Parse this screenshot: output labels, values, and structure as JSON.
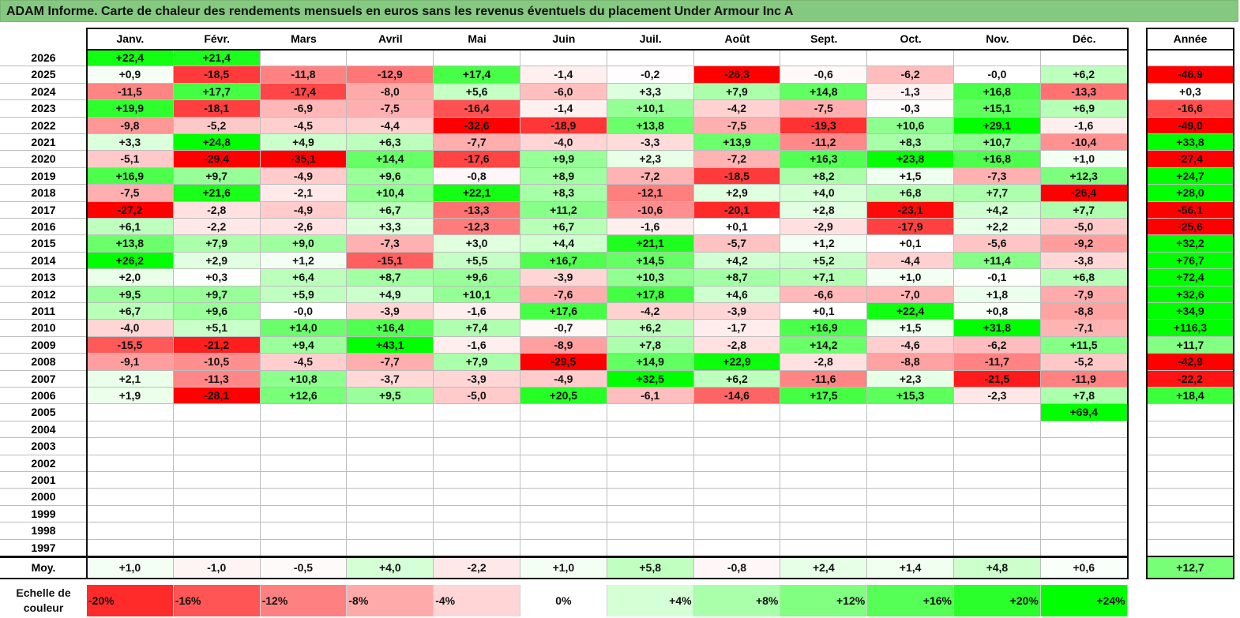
{
  "title": "ADAM Informe. Carte de chaleur des rendements mensuels en euros sans les revenus éventuels du placement Under Armour Inc A",
  "chart_data": {
    "type": "heatmap",
    "title": "ADAM Informe. Carte de chaleur des rendements mensuels en euros sans les revenus éventuels du placement Under Armour Inc A",
    "columns": [
      "Janv.",
      "Févr.",
      "Mars",
      "Avril",
      "Mai",
      "Juin",
      "Juil.",
      "Août",
      "Sept.",
      "Oct.",
      "Nov.",
      "Déc."
    ],
    "year_header": "Année",
    "rows": [
      {
        "year": "2026",
        "months": [
          "+22,4",
          "+21,4",
          "",
          "",
          "",
          "",
          "",
          "",
          "",
          "",
          "",
          ""
        ],
        "annual": ""
      },
      {
        "year": "2025",
        "months": [
          "+0,9",
          "-18,5",
          "-11,8",
          "-12,9",
          "+17,4",
          "-1,4",
          "-0,2",
          "-26,3",
          "-0,6",
          "-6,2",
          "-0,0",
          "+6,2"
        ],
        "annual": "-46,9"
      },
      {
        "year": "2024",
        "months": [
          "-11,5",
          "+17,7",
          "-17,4",
          "-8,0",
          "+5,6",
          "-6,0",
          "+3,3",
          "+7,9",
          "+14,8",
          "-1,3",
          "+16,8",
          "-13,3"
        ],
        "annual": "+0,3"
      },
      {
        "year": "2023",
        "months": [
          "+19,9",
          "-18,1",
          "-6,9",
          "-7,5",
          "-16,4",
          "-1,4",
          "+10,1",
          "-4,2",
          "-7,5",
          "-0,3",
          "+15,1",
          "+6,9"
        ],
        "annual": "-16,6"
      },
      {
        "year": "2022",
        "months": [
          "-9,8",
          "-5,2",
          "-4,5",
          "-4,4",
          "-32,6",
          "-18,9",
          "+13,8",
          "-7,5",
          "-19,3",
          "+10,6",
          "+29,1",
          "-1,6"
        ],
        "annual": "-49,0"
      },
      {
        "year": "2021",
        "months": [
          "+3,3",
          "+24,8",
          "+4,9",
          "+6,3",
          "-7,7",
          "-4,0",
          "-3,3",
          "+13,9",
          "-11,2",
          "+8,3",
          "+10,7",
          "-10,4"
        ],
        "annual": "+33,8"
      },
      {
        "year": "2020",
        "months": [
          "-5,1",
          "-29,4",
          "-35,1",
          "+14,4",
          "-17,6",
          "+9,9",
          "+2,3",
          "-7,2",
          "+16,3",
          "+23,8",
          "+16,8",
          "+1,0"
        ],
        "annual": "-27,4"
      },
      {
        "year": "2019",
        "months": [
          "+16,9",
          "+9,7",
          "-4,9",
          "+9,6",
          "-0,8",
          "+8,9",
          "-7,2",
          "-18,5",
          "+8,2",
          "+1,5",
          "-7,3",
          "+12,3"
        ],
        "annual": "+24,7"
      },
      {
        "year": "2018",
        "months": [
          "-7,5",
          "+21,6",
          "-2,1",
          "+10,4",
          "+22,1",
          "+8,3",
          "-12,1",
          "+2,9",
          "+4,0",
          "+6,8",
          "+7,7",
          "-26,4"
        ],
        "annual": "+28,0"
      },
      {
        "year": "2017",
        "months": [
          "-27,2",
          "-2,8",
          "-4,9",
          "+6,7",
          "-13,3",
          "+11,2",
          "-10,6",
          "-20,1",
          "+2,8",
          "-23,1",
          "+4,2",
          "+7,7"
        ],
        "annual": "-56,1"
      },
      {
        "year": "2016",
        "months": [
          "+6,1",
          "-2,2",
          "-2,6",
          "+3,3",
          "-12,3",
          "+6,7",
          "-1,6",
          "+0,1",
          "-2,9",
          "-17,9",
          "+2,2",
          "-5,0"
        ],
        "annual": "-25,6"
      },
      {
        "year": "2015",
        "months": [
          "+13,8",
          "+7,9",
          "+9,0",
          "-7,3",
          "+3,0",
          "+4,4",
          "+21,1",
          "-5,7",
          "+1,2",
          "+0,1",
          "-5,6",
          "-9,2"
        ],
        "annual": "+32,2"
      },
      {
        "year": "2014",
        "months": [
          "+26,2",
          "+2,9",
          "+1,2",
          "-15,1",
          "+5,5",
          "+16,7",
          "+14,5",
          "+4,2",
          "+5,2",
          "-4,4",
          "+11,4",
          "-3,8"
        ],
        "annual": "+76,7"
      },
      {
        "year": "2013",
        "months": [
          "+2,0",
          "+0,3",
          "+6,4",
          "+8,7",
          "+9,6",
          "-3,9",
          "+10,3",
          "+8,7",
          "+7,1",
          "+1,0",
          "-0,1",
          "+6,8"
        ],
        "annual": "+72,4"
      },
      {
        "year": "2012",
        "months": [
          "+9,5",
          "+9,7",
          "+5,9",
          "+4,9",
          "+10,1",
          "-7,6",
          "+17,8",
          "+4,6",
          "-6,6",
          "-7,0",
          "+1,8",
          "-7,9"
        ],
        "annual": "+32,6"
      },
      {
        "year": "2011",
        "months": [
          "+6,7",
          "+9,6",
          "-0,0",
          "-3,9",
          "-1,6",
          "+17,6",
          "-4,2",
          "-3,9",
          "+0,1",
          "+22,4",
          "+0,8",
          "-8,8"
        ],
        "annual": "+34,9"
      },
      {
        "year": "2010",
        "months": [
          "-4,0",
          "+5,1",
          "+14,0",
          "+16,4",
          "+7,4",
          "-0,7",
          "+6,2",
          "-1,7",
          "+16,9",
          "+1,5",
          "+31,8",
          "-7,1"
        ],
        "annual": "+116,3"
      },
      {
        "year": "2009",
        "months": [
          "-15,5",
          "-21,2",
          "+9,4",
          "+43,1",
          "-1,6",
          "-8,9",
          "+7,8",
          "-2,8",
          "+14,2",
          "-4,6",
          "-6,2",
          "+11,5"
        ],
        "annual": "+11,7"
      },
      {
        "year": "2008",
        "months": [
          "-9,1",
          "-10,5",
          "-4,5",
          "-7,7",
          "+7,9",
          "-29,5",
          "+14,9",
          "+22,9",
          "-2,8",
          "-8,8",
          "-11,7",
          "-5,2"
        ],
        "annual": "-42,9"
      },
      {
        "year": "2007",
        "months": [
          "+2,1",
          "-11,3",
          "+10,8",
          "-3,7",
          "-3,9",
          "-4,9",
          "+32,5",
          "+6,2",
          "-11,6",
          "+2,3",
          "-21,5",
          "-11,9"
        ],
        "annual": "-22,2"
      },
      {
        "year": "2006",
        "months": [
          "+1,9",
          "-28,1",
          "+12,6",
          "+9,5",
          "-5,0",
          "+20,5",
          "-6,1",
          "-14,6",
          "+17,5",
          "+15,3",
          "-2,3",
          "+7,8"
        ],
        "annual": "+18,4"
      },
      {
        "year": "2005",
        "months": [
          "",
          "",
          "",
          "",
          "",
          "",
          "",
          "",
          "",
          "",
          "",
          "+69,4"
        ],
        "annual": ""
      },
      {
        "year": "2004",
        "months": [
          "",
          "",
          "",
          "",
          "",
          "",
          "",
          "",
          "",
          "",
          "",
          ""
        ],
        "annual": ""
      },
      {
        "year": "2003",
        "months": [
          "",
          "",
          "",
          "",
          "",
          "",
          "",
          "",
          "",
          "",
          "",
          ""
        ],
        "annual": ""
      },
      {
        "year": "2002",
        "months": [
          "",
          "",
          "",
          "",
          "",
          "",
          "",
          "",
          "",
          "",
          "",
          ""
        ],
        "annual": ""
      },
      {
        "year": "2001",
        "months": [
          "",
          "",
          "",
          "",
          "",
          "",
          "",
          "",
          "",
          "",
          "",
          ""
        ],
        "annual": ""
      },
      {
        "year": "2000",
        "months": [
          "",
          "",
          "",
          "",
          "",
          "",
          "",
          "",
          "",
          "",
          "",
          ""
        ],
        "annual": ""
      },
      {
        "year": "1999",
        "months": [
          "",
          "",
          "",
          "",
          "",
          "",
          "",
          "",
          "",
          "",
          "",
          ""
        ],
        "annual": ""
      },
      {
        "year": "1998",
        "months": [
          "",
          "",
          "",
          "",
          "",
          "",
          "",
          "",
          "",
          "",
          "",
          ""
        ],
        "annual": ""
      },
      {
        "year": "1997",
        "months": [
          "",
          "",
          "",
          "",
          "",
          "",
          "",
          "",
          "",
          "",
          "",
          ""
        ],
        "annual": ""
      }
    ],
    "average": {
      "label": "Moy.",
      "months": [
        "+1,0",
        "-1,0",
        "-0,5",
        "+4,0",
        "-2,2",
        "+1,0",
        "+5,8",
        "-0,8",
        "+2,4",
        "+1,4",
        "+4,8",
        "+0,6"
      ],
      "annual": "+12,7"
    },
    "scale": {
      "label_line1": "Echelle de",
      "label_line2": "couleur",
      "steps": [
        {
          "label": "-20%",
          "value": -20
        },
        {
          "label": "-16%",
          "value": -16
        },
        {
          "label": "-12%",
          "value": -12
        },
        {
          "label": "-8%",
          "value": -8
        },
        {
          "label": "-4%",
          "value": -4
        },
        {
          "label": "0%",
          "value": 0
        },
        {
          "label": "+4%",
          "value": 4
        },
        {
          "label": "+8%",
          "value": 8
        },
        {
          "label": "+12%",
          "value": 12
        },
        {
          "label": "+16%",
          "value": 16
        },
        {
          "label": "+20%",
          "value": 20
        },
        {
          "label": "+24%",
          "value": 24
        }
      ]
    }
  }
}
